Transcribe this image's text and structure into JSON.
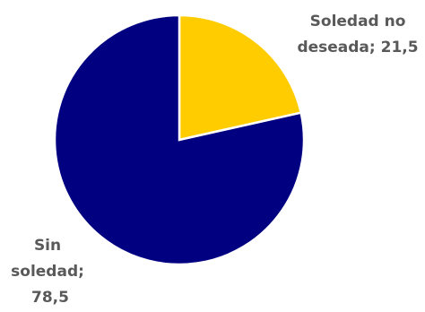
{
  "chart_data": {
    "type": "pie",
    "slices": [
      {
        "label": "Soledad no deseada",
        "value": 21.5,
        "display_value": "21,5",
        "color": "#FFCC00"
      },
      {
        "label": "Sin soledad",
        "value": 78.5,
        "display_value": "78,5",
        "color": "#000080"
      }
    ],
    "data_labels": [
      [
        "Soledad no",
        "deseada; 21,5"
      ],
      [
        "Sin",
        "soledad;",
        "78,5"
      ]
    ],
    "start_angle_deg": 0,
    "direction": "clockwise",
    "label_color": "#595959",
    "edge_color": "#FFFFFF"
  }
}
